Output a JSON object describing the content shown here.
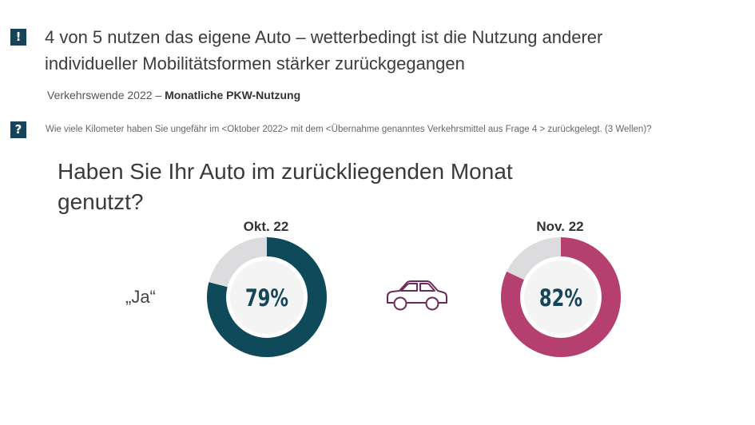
{
  "headline": {
    "line1": "4 von 5 nutzen das eigene Auto – wetterbedingt ist die Nutzung anderer",
    "line2": "individueller Mobilitätsformen stärker zurückgegangen"
  },
  "subtitle": {
    "prefix": "Verkehrswende 2022 –",
    "emphasis": "Monatliche PKW-Nutzung"
  },
  "question_text": "Wie viele Kilometer haben Sie ungefähr im <Oktober 2022> mit dem <Übernahme genanntes Verkehrsmittel aus Frage 4 > zurückgelegt. (3 Wellen)?",
  "icons": {
    "alert": "exclamation-icon",
    "question": "question-icon",
    "car": "car-icon"
  },
  "chart_data": {
    "type": "pie",
    "title": "Haben Sie Ihr Auto im zurückliegenden Monat genutzt?",
    "title_lines": [
      "Haben Sie Ihr Auto im zurückliegenden Monat",
      "genutzt?"
    ],
    "answer_label": "„Ja“",
    "series": [
      {
        "name": "Okt. 22",
        "value": 79,
        "value_label": "79%",
        "color": "#0f4a5a"
      },
      {
        "name": "Nov. 22",
        "value": 82,
        "value_label": "82%",
        "color": "#b5406f"
      }
    ],
    "remainder_color": "#dcdcdf",
    "center_text_color": "#16445a"
  }
}
